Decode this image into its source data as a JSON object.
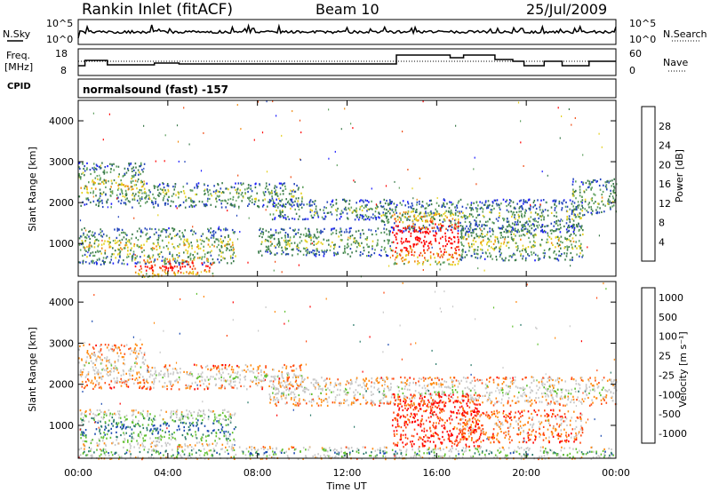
{
  "header": {
    "station": "Rankin Inlet (fitACF)",
    "beam": "Beam 10",
    "date": "25/Jul/2009"
  },
  "nsky_panel": {
    "left_label": "N.Sky",
    "right_label": "N.Search",
    "left_ticks": [
      "10^5",
      "10^0"
    ],
    "right_ticks": [
      "10^5",
      "10^0"
    ]
  },
  "freq_panel": {
    "left_label_line1": "Freq.",
    "left_label_line2": "[MHz]",
    "right_label": "Nave",
    "left_ticks": [
      "18",
      "8"
    ],
    "right_ticks": [
      "60",
      "0"
    ]
  },
  "cpid": {
    "label": "CPID",
    "text": "normalsound (fast) -157"
  },
  "colors": {
    "power": [
      "#1a1aff",
      "#2244bb",
      "#3a7a4a",
      "#5fa05f",
      "#e5d020",
      "#f08a10",
      "#f04a10",
      "#ff0000"
    ],
    "velocity": [
      "#ff0000",
      "#ff4a10",
      "#ff8a10",
      "#c8c8c8",
      "#c8c8c8",
      "#60c030",
      "#2a7a6a",
      "#1a4ab0"
    ]
  },
  "chart_data": [
    {
      "type": "heatmap",
      "panel": "power",
      "ylabel": "Slant Range [km]",
      "xlabel": "",
      "x_ticks": [
        "00:00",
        "04:00",
        "08:00",
        "12:00",
        "16:00",
        "20:00",
        "00:00"
      ],
      "x_range_hours": [
        0,
        24
      ],
      "y_ticks": [
        "1000",
        "2000",
        "3000",
        "4000"
      ],
      "ylim": [
        200,
        4500
      ],
      "colorbar": {
        "title": "Power [dB]",
        "ticks": [
          "4",
          "8",
          "12",
          "16",
          "20",
          "24",
          "28"
        ],
        "range": [
          0,
          32
        ]
      },
      "features": [
        {
          "t_start": 0.0,
          "t_end": 3.0,
          "range_low": 1900,
          "range_high": 3000,
          "level": 0.45
        },
        {
          "t_start": 3.0,
          "t_end": 10.0,
          "range_low": 1900,
          "range_high": 2500,
          "level": 0.4
        },
        {
          "t_start": 8.5,
          "t_end": 14.0,
          "range_low": 1600,
          "range_high": 2100,
          "level": 0.35
        },
        {
          "t_start": 13.5,
          "t_end": 22.5,
          "range_low": 1300,
          "range_high": 2100,
          "level": 0.35
        },
        {
          "t_start": 22.0,
          "t_end": 24.0,
          "range_low": 1700,
          "range_high": 2600,
          "level": 0.4
        },
        {
          "t_start": 0.0,
          "t_end": 7.0,
          "range_low": 500,
          "range_high": 1400,
          "level": 0.45
        },
        {
          "t_start": 8.0,
          "t_end": 14.0,
          "range_low": 700,
          "range_high": 1400,
          "level": 0.4
        },
        {
          "t_start": 14.0,
          "t_end": 17.0,
          "range_low": 500,
          "range_high": 1800,
          "level": 0.95
        },
        {
          "t_start": 17.0,
          "t_end": 22.5,
          "range_low": 600,
          "range_high": 1500,
          "level": 0.45
        },
        {
          "t_start": 2.5,
          "t_end": 6.0,
          "range_low": 200,
          "range_high": 700,
          "level": 0.85
        }
      ]
    },
    {
      "type": "heatmap",
      "panel": "velocity",
      "ylabel": "Slant Range [km]",
      "xlabel": "Time UT",
      "x_ticks": [
        "00:00",
        "04:00",
        "08:00",
        "12:00",
        "16:00",
        "20:00",
        "00:00"
      ],
      "x_range_hours": [
        0,
        24
      ],
      "y_ticks": [
        "1000",
        "2000",
        "3000",
        "4000"
      ],
      "ylim": [
        200,
        4500
      ],
      "colorbar": {
        "title": "Velocity [m s⁻¹]",
        "ticks": [
          "-1000",
          "-500",
          "-100",
          "-25",
          "25",
          "100",
          "500",
          "1000"
        ],
        "range": [
          -1000,
          1000
        ]
      },
      "features": [
        {
          "t_start": 0.0,
          "t_end": 3.0,
          "range_low": 1900,
          "range_high": 3000,
          "level": 0.45
        },
        {
          "t_start": 3.0,
          "t_end": 10.0,
          "range_low": 1900,
          "range_high": 2500,
          "level": 0.5
        },
        {
          "t_start": 8.5,
          "t_end": 24.0,
          "range_low": 1500,
          "range_high": 2200,
          "level": 0.5
        },
        {
          "t_start": 0.0,
          "t_end": 7.0,
          "range_low": 500,
          "range_high": 1400,
          "level": 0.8
        },
        {
          "t_start": 14.0,
          "t_end": 18.0,
          "range_low": 500,
          "range_high": 1800,
          "level": 0.15
        },
        {
          "t_start": 17.0,
          "t_end": 22.5,
          "range_low": 600,
          "range_high": 1400,
          "level": 0.3
        },
        {
          "t_start": 0.0,
          "t_end": 24.0,
          "range_low": 200,
          "range_high": 500,
          "level": 0.7
        }
      ]
    }
  ]
}
